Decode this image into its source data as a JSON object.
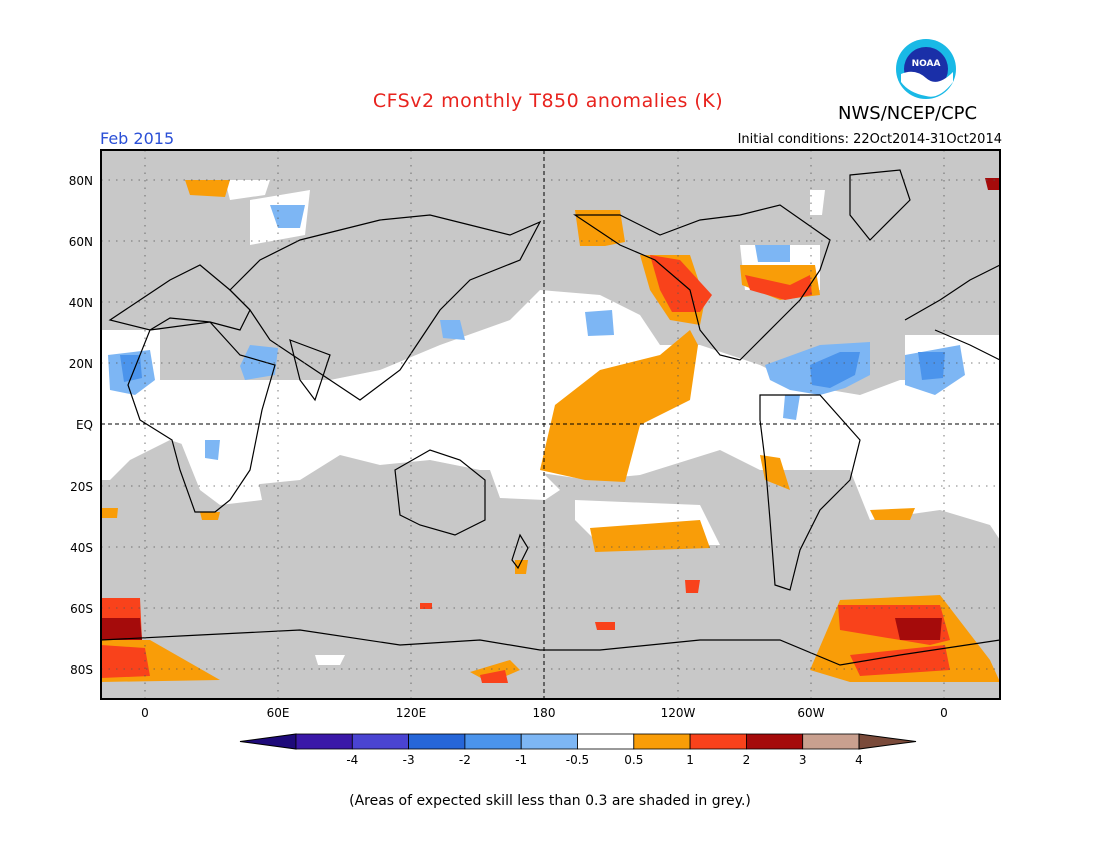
{
  "header": {
    "title": "CFSv2 monthly T850 anomalies (K)",
    "agency": "NWS/NCEP/CPC",
    "logo_text": "NOAA",
    "month": "Feb 2015",
    "initial_conditions": "Initial conditions: 22Oct2014-31Oct2014"
  },
  "axes": {
    "lat_labels": [
      "80N",
      "60N",
      "40N",
      "20N",
      "EQ",
      "20S",
      "40S",
      "60S",
      "80S"
    ],
    "lat_values": [
      80,
      60,
      40,
      20,
      0,
      -20,
      -40,
      -60,
      -80
    ],
    "lon_labels": [
      "0",
      "60E",
      "120E",
      "180",
      "120W",
      "60W",
      "0"
    ],
    "lon_values": [
      0,
      60,
      120,
      180,
      240,
      300,
      360
    ],
    "lon_range": [
      -20,
      380
    ],
    "lat_range": [
      -90,
      90
    ]
  },
  "colorbar": {
    "labels": [
      "-4",
      "-3",
      "-2",
      "-1",
      "-0.5",
      "0.5",
      "1",
      "2",
      "3",
      "4"
    ],
    "colors": [
      "#3a18a8",
      "#4a44d2",
      "#2666d8",
      "#4b94ec",
      "#7db6f4",
      "#ffffff",
      "#f99d08",
      "#f9421b",
      "#a50b0b",
      "#c9a08f"
    ],
    "under_color": "#1e0a7a",
    "over_color": "#7a4a3a"
  },
  "footnote": "(Areas of expected skill less than 0.3 are shaded in grey.)",
  "colors": {
    "grey_mask": "#c8c8c8",
    "title": "#e8231e",
    "month": "#2a4fd6"
  }
}
